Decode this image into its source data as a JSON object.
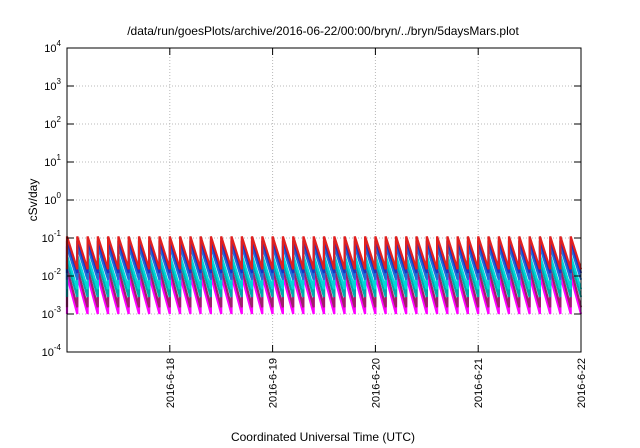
{
  "chart_data": {
    "type": "line",
    "title": "/data/run/goesPlots/archive/2016-06-22/00:00/bryn/../bryn/5daysMars.plot",
    "xlabel": "Coordinated Universal Time (UTC)",
    "ylabel": "cSv/day",
    "y_scale": "log",
    "ylim": [
      0.0001,
      10000
    ],
    "y_ticks": [
      {
        "value": 0.0001,
        "base": "10",
        "exp": "-4"
      },
      {
        "value": 0.001,
        "base": "10",
        "exp": "-3"
      },
      {
        "value": 0.01,
        "base": "10",
        "exp": "-2"
      },
      {
        "value": 0.1,
        "base": "10",
        "exp": "-1"
      },
      {
        "value": 1,
        "base": "10",
        "exp": "0"
      },
      {
        "value": 10,
        "base": "10",
        "exp": "1"
      },
      {
        "value": 100,
        "base": "10",
        "exp": "2"
      },
      {
        "value": 1000,
        "base": "10",
        "exp": "3"
      },
      {
        "value": 10000,
        "base": "10",
        "exp": "4"
      }
    ],
    "xlim": [
      "2016-06-17 00:00",
      "2016-06-22 00:00"
    ],
    "x_ticks": [
      "2016-6-18",
      "2016-6-19",
      "2016-6-20",
      "2016-6-21",
      "2016-6-22"
    ],
    "grid": true,
    "sawtooth_period_hours": 2.4,
    "series": [
      {
        "color": "#ff00ff",
        "peak": 0.01,
        "trough": 0.001
      },
      {
        "color": "#a0206a",
        "peak": 0.016,
        "trough": 0.0015
      },
      {
        "color": "#00aaaa",
        "peak": 0.025,
        "trough": 0.0028
      },
      {
        "color": "#00d8d8",
        "peak": 0.035,
        "trough": 0.0045
      },
      {
        "color": "#1e6fd8",
        "peak": 0.06,
        "trough": 0.008
      },
      {
        "color": "#2030c0",
        "peak": 0.085,
        "trough": 0.012
      },
      {
        "color": "#e02020",
        "peak": 0.11,
        "trough": 0.015
      }
    ]
  }
}
